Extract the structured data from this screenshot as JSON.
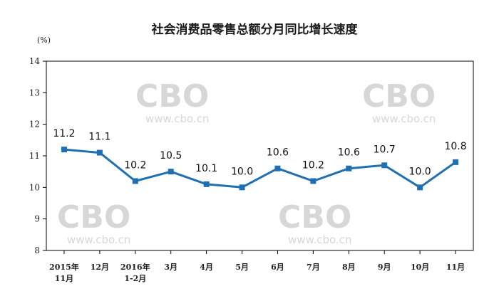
{
  "chart_data": {
    "type": "line",
    "title": "社会消费品零售总额分月同比增长速度",
    "unit": "(%)",
    "categories": [
      [
        "2015年",
        "11月"
      ],
      [
        "12月"
      ],
      [
        "2016年",
        "1-2月"
      ],
      [
        "3月"
      ],
      [
        "4月"
      ],
      [
        "5月"
      ],
      [
        "6月"
      ],
      [
        "7月"
      ],
      [
        "8月"
      ],
      [
        "9月"
      ],
      [
        "10月"
      ],
      [
        "11月"
      ]
    ],
    "values": [
      11.2,
      11.1,
      10.2,
      10.5,
      10.1,
      10.0,
      10.6,
      10.2,
      10.6,
      10.7,
      10.0,
      10.8
    ],
    "data_labels": [
      "11.2",
      "11.1",
      "10.2",
      "10.5",
      "10.1",
      "10.0",
      "10.6",
      "10.2",
      "10.6",
      "10.7",
      "10.0",
      "10.8"
    ],
    "ylim": [
      8,
      14
    ],
    "yticks": [
      8,
      9,
      10,
      11,
      12,
      13,
      14
    ],
    "grid": false,
    "legend": "none",
    "colors": {
      "line": "#1f6fb2",
      "marker": "#1f6fb2",
      "frame": "#000000"
    }
  },
  "watermark": {
    "brand": "CBO",
    "site": "www.cbo.cn"
  }
}
